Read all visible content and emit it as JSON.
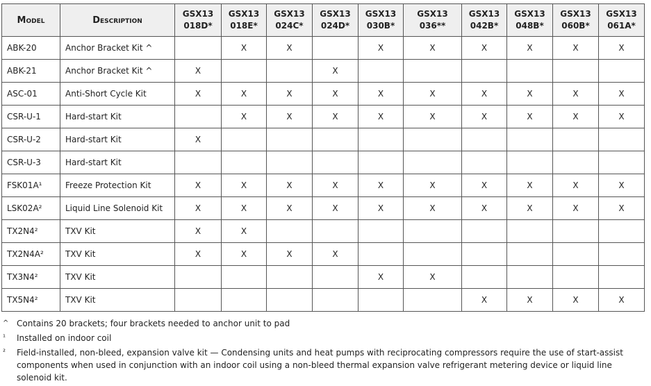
{
  "table": {
    "headers": [
      "Model",
      "Description",
      "GSX13\n018D*",
      "GSX13\n018E*",
      "GSX13\n024C*",
      "GSX13\n024D*",
      "GSX13\n030B*",
      "GSX13\n036**",
      "GSX13\n042B*",
      "GSX13\n048B*",
      "GSX13\n060B*",
      "GSX13\n061A*"
    ],
    "rows": [
      {
        "model": "ABK-20",
        "description": "Anchor Bracket Kit ^",
        "cells": [
          null,
          "X",
          "X",
          null,
          "X",
          "X",
          "X",
          "X",
          "X",
          "X"
        ]
      },
      {
        "model": "ABK-21",
        "description": "Anchor Bracket Kit ^",
        "cells": [
          "X",
          null,
          null,
          "X",
          null,
          null,
          null,
          null,
          null,
          null
        ]
      },
      {
        "model": "ASC-01",
        "description": "Anti-Short Cycle Kit",
        "cells": [
          "X",
          "X",
          "X",
          "X",
          "X",
          "X",
          "X",
          "X",
          "X",
          "X"
        ]
      },
      {
        "model": "CSR-U-1",
        "description": "Hard-start Kit",
        "cells": [
          null,
          "X",
          "X",
          "X",
          "X",
          "X",
          "X",
          "X",
          "X",
          "X"
        ]
      },
      {
        "model": "CSR-U-2",
        "description": "Hard-start Kit",
        "cells": [
          "X",
          null,
          null,
          null,
          null,
          null,
          null,
          null,
          null,
          null
        ]
      },
      {
        "model": "CSR-U-3",
        "description": "Hard-start Kit",
        "cells": [
          null,
          null,
          null,
          null,
          null,
          null,
          null,
          null,
          null,
          null
        ]
      },
      {
        "model": "FSK01A¹",
        "description": "Freeze Protection Kit",
        "cells": [
          "X",
          "X",
          "X",
          "X",
          "X",
          "X",
          "X",
          "X",
          "X",
          "X"
        ]
      },
      {
        "model": "LSK02A²",
        "description": "Liquid Line Solenoid Kit",
        "cells": [
          "X",
          "X",
          "X",
          "X",
          "X",
          "X",
          "X",
          "X",
          "X",
          "X"
        ]
      },
      {
        "model": "TX2N4²",
        "description": "TXV Kit",
        "cells": [
          "X",
          "X",
          null,
          null,
          null,
          null,
          null,
          null,
          null,
          null
        ]
      },
      {
        "model": "TX2N4A²",
        "description": "TXV Kit",
        "cells": [
          "X",
          "X",
          "X",
          "X",
          null,
          null,
          null,
          null,
          null,
          null
        ]
      },
      {
        "model": "TX3N4²",
        "description": "TXV Kit",
        "cells": [
          null,
          null,
          null,
          null,
          "X",
          "X",
          null,
          null,
          null,
          null
        ]
      },
      {
        "model": "TX5N4²",
        "description": "TXV Kit",
        "cells": [
          null,
          null,
          null,
          null,
          null,
          null,
          "X",
          "X",
          "X",
          "X"
        ]
      }
    ]
  },
  "footnotes": [
    {
      "mark": "^",
      "text": "Contains 20 brackets; four brackets needed to anchor unit to pad"
    },
    {
      "mark": "¹",
      "text": "Installed on indoor coil"
    },
    {
      "mark": "²",
      "text": "Field-installed, non-bleed, expansion valve kit — Condensing units and heat pumps with reciprocating compressors require the use of start-assist components when used in conjunction with an indoor coil using a non-bleed thermal expansion valve refrigerant metering device or liquid line solenoid kit."
    }
  ]
}
